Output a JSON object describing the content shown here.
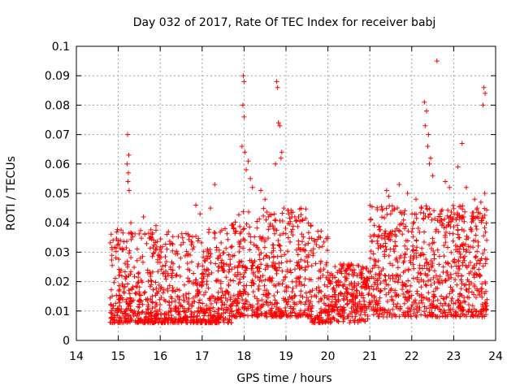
{
  "chart_data": {
    "type": "scatter",
    "title": "Day 032 of 2017, Rate Of TEC Index for receiver babj",
    "xlabel": "GPS time / hours",
    "ylabel": "ROTI / TECUs",
    "xlim": [
      14,
      24
    ],
    "ylim": [
      0,
      0.1
    ],
    "xticks": [
      "14",
      "15",
      "16",
      "17",
      "18",
      "19",
      "20",
      "21",
      "22",
      "23",
      "24"
    ],
    "yticks": [
      "0",
      "0.01",
      "0.02",
      "0.03",
      "0.04",
      "0.05",
      "0.06",
      "0.07",
      "0.08",
      "0.09",
      "0.1"
    ],
    "grid": true,
    "marker": "+",
    "color": "#ff0000",
    "x_range": [
      14.8,
      23.8
    ],
    "series": [
      {
        "points": [
          [
            15.22,
            0.07
          ],
          [
            15.25,
            0.063
          ],
          [
            15.21,
            0.06
          ],
          [
            15.24,
            0.057
          ],
          [
            15.23,
            0.054
          ],
          [
            15.26,
            0.051
          ],
          [
            15.3,
            0.04
          ],
          [
            15.6,
            0.042
          ],
          [
            15.9,
            0.039
          ],
          [
            16.85,
            0.046
          ],
          [
            16.95,
            0.043
          ],
          [
            17.3,
            0.053
          ],
          [
            17.2,
            0.045
          ],
          [
            17.98,
            0.09
          ],
          [
            18.0,
            0.088
          ],
          [
            17.97,
            0.08
          ],
          [
            18.0,
            0.076
          ],
          [
            17.95,
            0.066
          ],
          [
            18.02,
            0.064
          ],
          [
            18.1,
            0.061
          ],
          [
            18.05,
            0.058
          ],
          [
            18.15,
            0.055
          ],
          [
            18.2,
            0.052
          ],
          [
            18.4,
            0.051
          ],
          [
            18.5,
            0.048
          ],
          [
            18.78,
            0.088
          ],
          [
            18.8,
            0.086
          ],
          [
            18.82,
            0.074
          ],
          [
            18.85,
            0.073
          ],
          [
            18.9,
            0.064
          ],
          [
            18.88,
            0.062
          ],
          [
            18.75,
            0.06
          ],
          [
            18.95,
            0.045
          ],
          [
            19.3,
            0.042
          ],
          [
            19.4,
            0.041
          ],
          [
            21.4,
            0.051
          ],
          [
            21.45,
            0.049
          ],
          [
            21.7,
            0.053
          ],
          [
            21.9,
            0.05
          ],
          [
            22.1,
            0.048
          ],
          [
            22.3,
            0.081
          ],
          [
            22.35,
            0.078
          ],
          [
            22.32,
            0.073
          ],
          [
            22.4,
            0.07
          ],
          [
            22.38,
            0.066
          ],
          [
            22.45,
            0.062
          ],
          [
            22.42,
            0.06
          ],
          [
            22.5,
            0.056
          ],
          [
            22.6,
            0.095
          ],
          [
            22.8,
            0.054
          ],
          [
            22.9,
            0.052
          ],
          [
            23.1,
            0.059
          ],
          [
            23.2,
            0.067
          ],
          [
            23.3,
            0.052
          ],
          [
            23.5,
            0.048
          ],
          [
            23.72,
            0.086
          ],
          [
            23.75,
            0.084
          ],
          [
            23.7,
            0.08
          ],
          [
            23.74,
            0.05
          ],
          [
            23.65,
            0.047
          ]
        ]
      }
    ]
  }
}
